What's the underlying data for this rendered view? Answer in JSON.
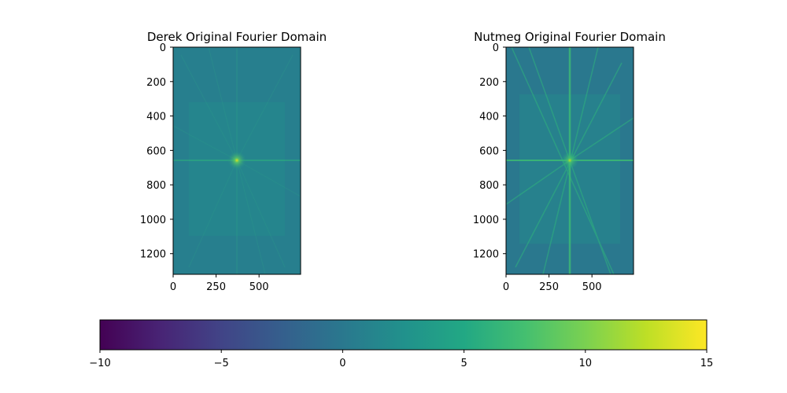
{
  "chart_data": {
    "type": "heatmap",
    "colormap": "viridis",
    "panels": [
      {
        "title": "Derek Original Fourier Domain",
        "xlim": [
          0,
          742
        ],
        "ylim": [
          1320,
          0
        ],
        "xticks": [
          0,
          250,
          500
        ],
        "yticks": [
          0,
          200,
          400,
          600,
          800,
          1000,
          1200
        ],
        "image_size": [
          742,
          1320
        ],
        "center": [
          371,
          660
        ],
        "background_value": 3.0,
        "peak_value": 10.5,
        "feature": "bright DC point with faint horizontal/vertical axis lines and radial streaks"
      },
      {
        "title": "Nutmeg Original Fourier Domain",
        "xlim": [
          0,
          742
        ],
        "ylim": [
          1320,
          0
        ],
        "xticks": [
          0,
          250,
          500
        ],
        "yticks": [
          0,
          200,
          400,
          600,
          800,
          1000,
          1200
        ],
        "image_size": [
          742,
          1320
        ],
        "center": [
          371,
          660
        ],
        "background_value": 2.6,
        "peak_value": 10.0,
        "feature": "bright DC point with strong horizontal/vertical axis lines and diagonal streaks"
      }
    ],
    "colorbar": {
      "orientation": "horizontal",
      "range": [
        -10,
        15
      ],
      "ticks": [
        -10,
        -5,
        0,
        5,
        10,
        15
      ],
      "tick_labels": [
        "−10",
        "−5",
        "0",
        "5",
        "10",
        "15"
      ]
    }
  }
}
